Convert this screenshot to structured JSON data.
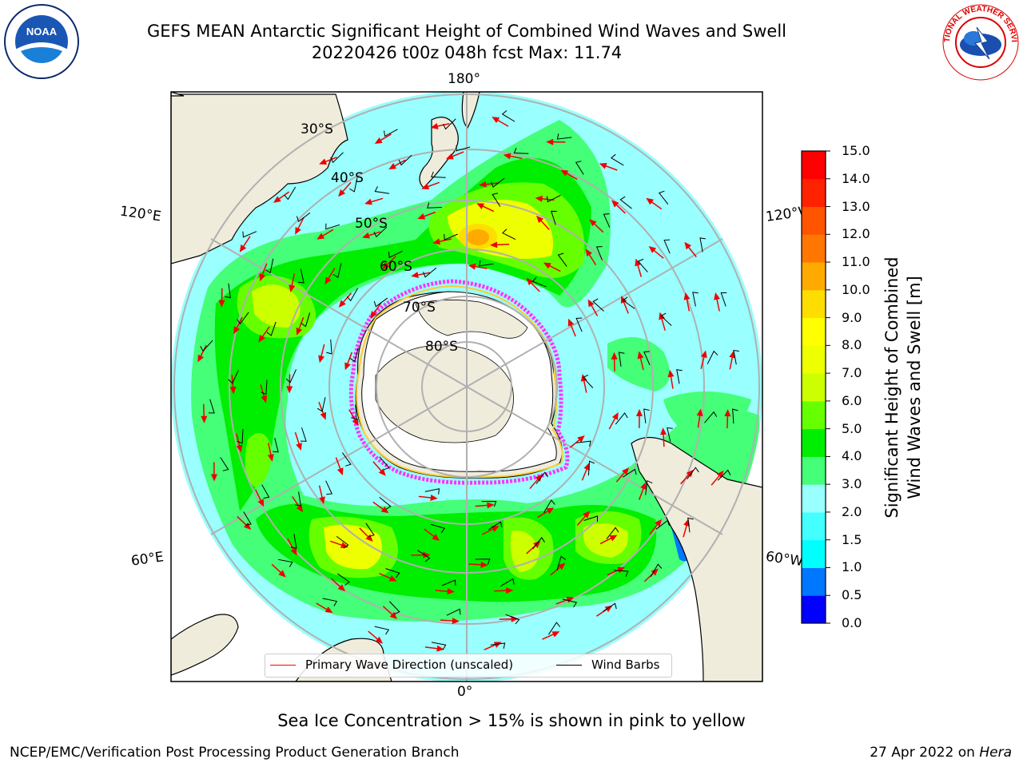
{
  "header": {
    "title": "GEFS MEAN Antarctic Significant Height of Combined Wind Waves and Swell",
    "subtitle": "20220426 t00z 048h fcst    Max: 11.74"
  },
  "logos": {
    "left": "noaa-logo",
    "left_text": "NOAA",
    "right": "nws-logo",
    "right_text": "NATIONAL WEATHER SERVICE"
  },
  "map": {
    "longitude_labels": {
      "top": "180°",
      "bottom": "0°",
      "upper_left": "120°E",
      "upper_right": "120°W",
      "lower_left": "60°E",
      "lower_right": "60°W"
    },
    "latitude_labels": [
      "30°S",
      "40°S",
      "50°S",
      "60°S",
      "70°S",
      "80°S"
    ],
    "land_color": "#efecdc",
    "ice_edge_colors": [
      "#ff33ff",
      "#ffcc33"
    ],
    "wave_arrow_color": "#ff0000",
    "wind_barb_color": "#000000"
  },
  "colorbar": {
    "title_line1": "Significant Height of Combined",
    "title_line2": "Wind Waves and Swell [m]",
    "ticks": [
      "0.0",
      "0.5",
      "1.0",
      "1.5",
      "2.0",
      "3.0",
      "4.0",
      "5.0",
      "6.0",
      "7.0",
      "8.0",
      "9.0",
      "10.0",
      "11.0",
      "12.0",
      "13.0",
      "14.0",
      "15.0"
    ],
    "colors": [
      "#0000ff",
      "#0077ff",
      "#00ffff",
      "#44ffff",
      "#99ffff",
      "#44ff77",
      "#00ee00",
      "#66ff00",
      "#ccff00",
      "#eeff00",
      "#ffff00",
      "#ffdd00",
      "#ffaa00",
      "#ff7700",
      "#ff5500",
      "#ff2200",
      "#ff0000"
    ]
  },
  "legend": {
    "wave_label": "Primary Wave Direction (unscaled)",
    "wind_label": "Wind Barbs"
  },
  "caption": "Sea Ice Concentration > 15% is shown in pink to yellow",
  "footer": {
    "left": "NCEP/EMC/Verification Post Processing Product Generation Branch",
    "right_prefix": "27 Apr 2022 on ",
    "right_machine": "Hera"
  }
}
